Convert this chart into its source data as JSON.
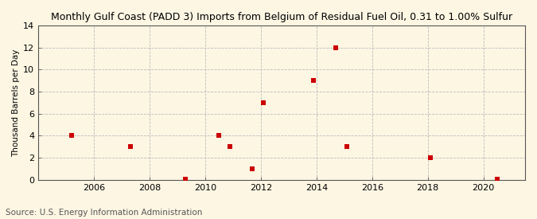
{
  "title": "Monthly Gulf Coast (PADD 3) Imports from Belgium of Residual Fuel Oil, 0.31 to 1.00% Sulfur",
  "ylabel": "Thousand Barrels per Day",
  "source": "Source: U.S. Energy Information Administration",
  "background_color": "#fdf6e3",
  "plot_bg_color": "#fdf6e3",
  "point_color": "#cc0000",
  "grid_color": "#bbbbbb",
  "xlim": [
    2004.0,
    2021.5
  ],
  "ylim": [
    0,
    14
  ],
  "yticks": [
    0,
    2,
    4,
    6,
    8,
    10,
    12,
    14
  ],
  "xticks": [
    2006,
    2008,
    2010,
    2012,
    2014,
    2016,
    2018,
    2020
  ],
  "data_x": [
    2005.2,
    2007.3,
    2009.3,
    2010.5,
    2010.9,
    2011.7,
    2012.1,
    2013.9,
    2014.7,
    2015.1,
    2018.1,
    2020.5
  ],
  "data_y": [
    4,
    3,
    0.1,
    4,
    3,
    1,
    7,
    9,
    12,
    3,
    2,
    0.1
  ],
  "title_fontsize": 9.0,
  "ylabel_fontsize": 7.5,
  "tick_fontsize": 8.0,
  "source_fontsize": 7.5
}
